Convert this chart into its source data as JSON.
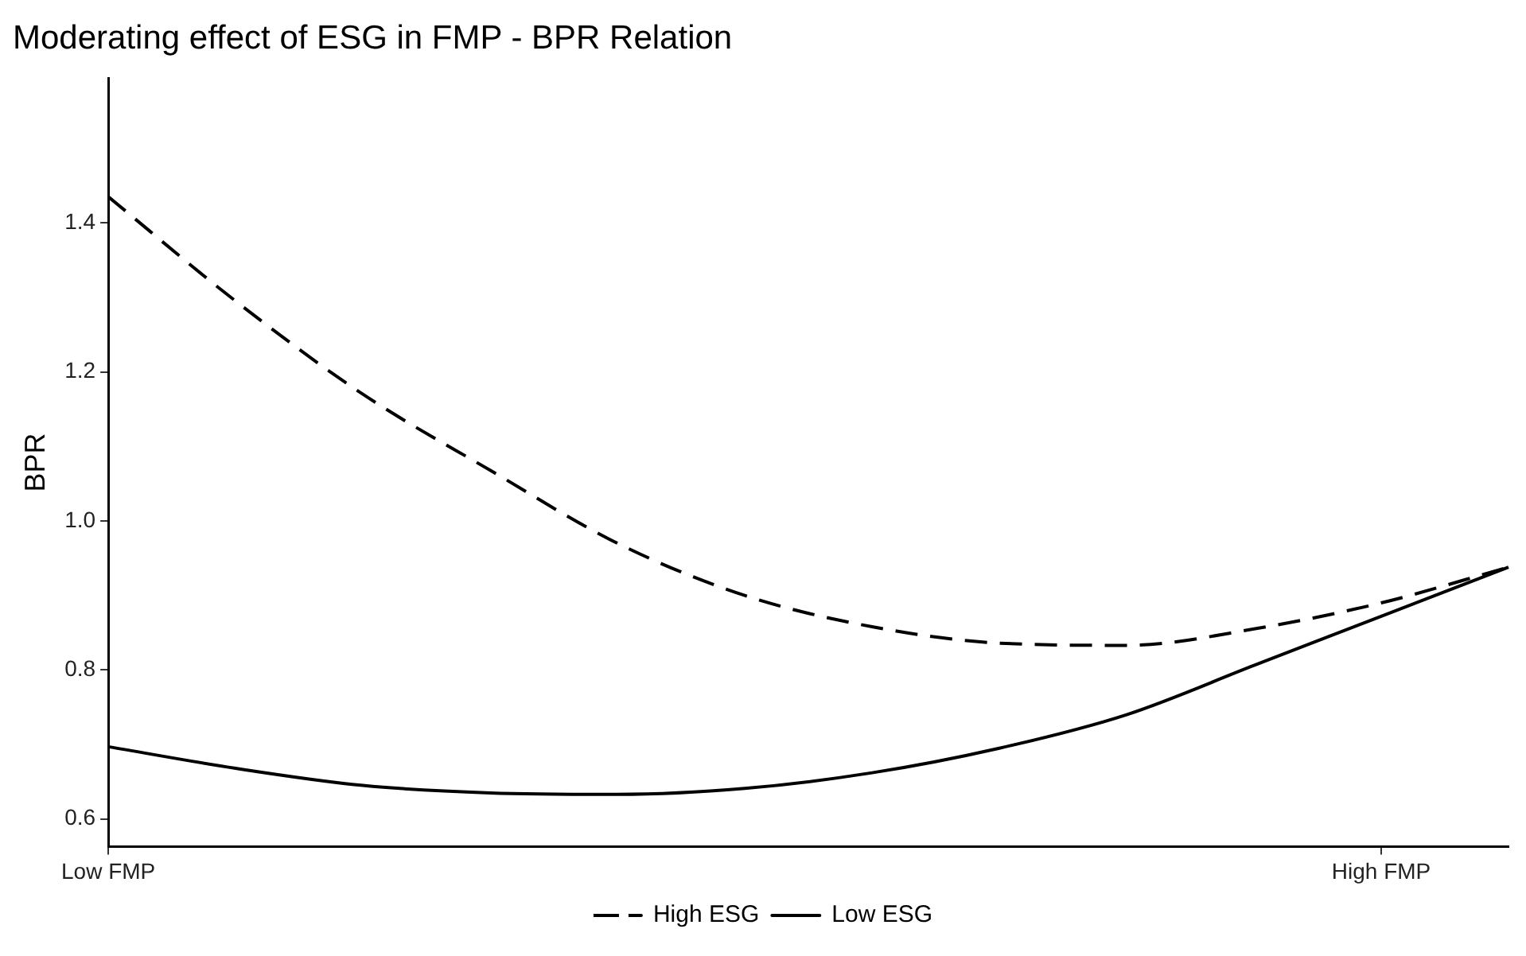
{
  "chart_data": {
    "type": "line",
    "title": "Moderating effect of ESG in FMP - BPR Relation",
    "ylabel": "BPR",
    "categories": [
      "Low FMP",
      null,
      null,
      null,
      null,
      null,
      null,
      null,
      null,
      null,
      "High FMP",
      null
    ],
    "ylim": [
      0.563,
      1.594
    ],
    "yticks": [
      {
        "value": 0.6,
        "label": "0.6"
      },
      {
        "value": 0.8,
        "label": "0.8"
      },
      {
        "value": 1.0,
        "label": "1.0"
      },
      {
        "value": 1.2,
        "label": "1.2"
      },
      {
        "value": 1.4,
        "label": "1.4"
      }
    ],
    "grid": false,
    "legend": "bottom",
    "marker": "none",
    "series": [
      {
        "name": "High ESG",
        "color": "#000000",
        "line_style": "dashed",
        "values": [
          1.435,
          1.295,
          1.17,
          1.068,
          0.97,
          0.9,
          0.858,
          0.836,
          0.833,
          0.855,
          0.89,
          0.938
        ]
      },
      {
        "name": "Low ESG",
        "color": "#000000",
        "line_style": "solid",
        "values": [
          0.697,
          0.668,
          0.645,
          0.635,
          0.633,
          0.641,
          0.662,
          0.695,
          0.74,
          0.806,
          0.872,
          0.938
        ]
      }
    ]
  }
}
